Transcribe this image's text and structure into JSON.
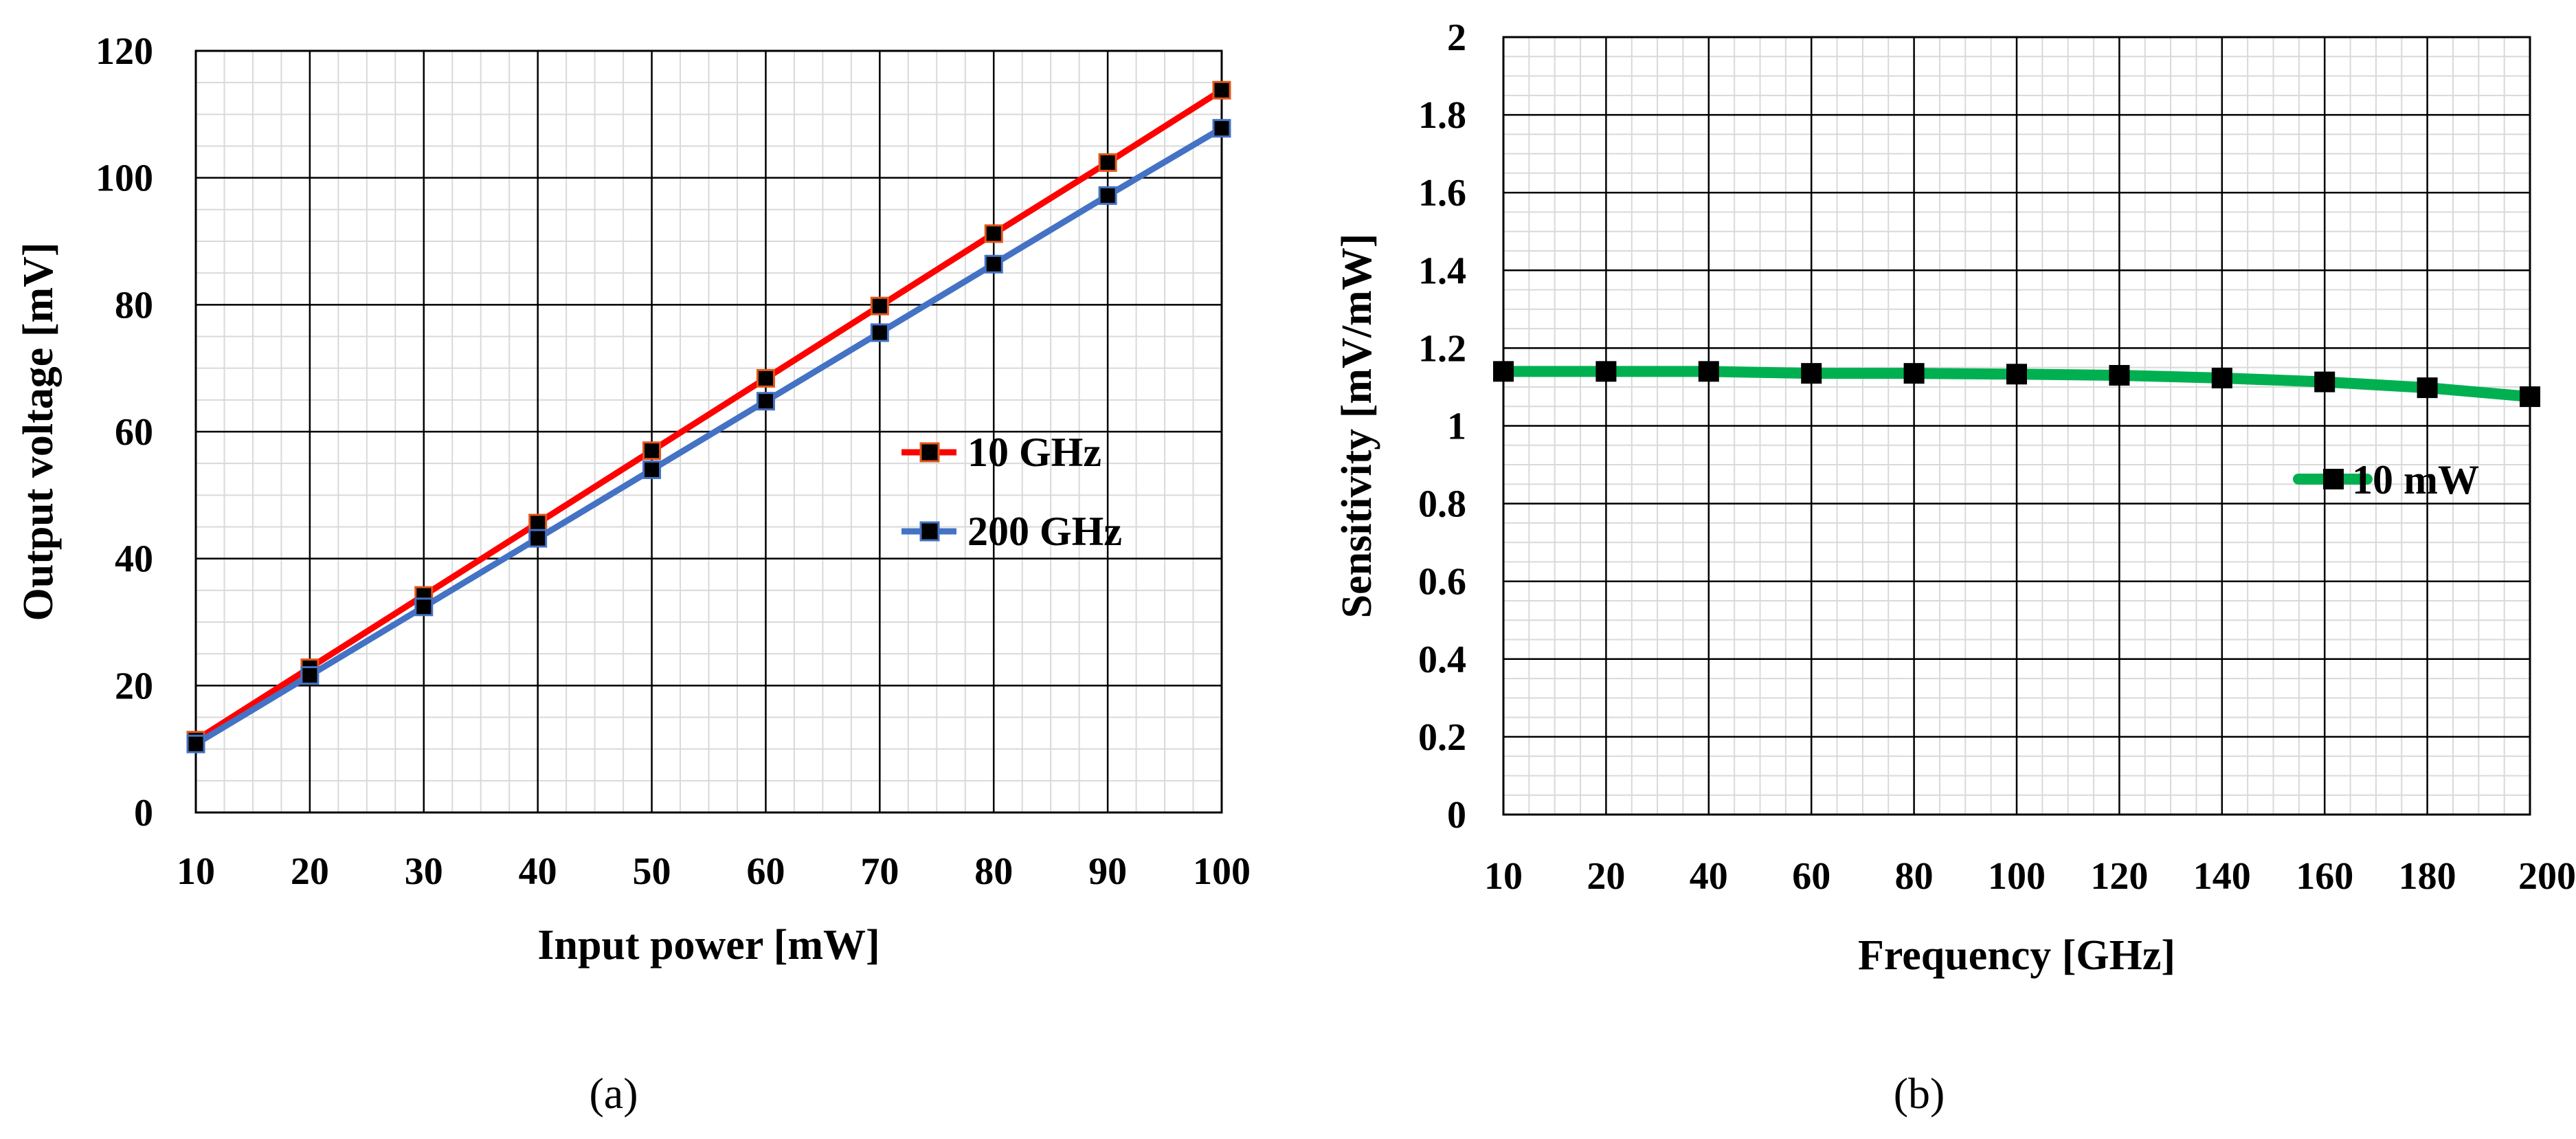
{
  "chart_data": [
    {
      "type": "line",
      "caption": "(a)",
      "xlabel": "Input power [mW]",
      "ylabel": "Output voltage [mV]",
      "xlim": [
        10,
        100
      ],
      "ylim": [
        0,
        120
      ],
      "xticks": [
        10,
        20,
        30,
        40,
        50,
        60,
        70,
        80,
        90,
        100
      ],
      "yticks": [
        0,
        20,
        40,
        60,
        80,
        100,
        120
      ],
      "grid": true,
      "legend_position": "center-right",
      "x": [
        10,
        20,
        30,
        40,
        50,
        60,
        70,
        80,
        90,
        100
      ],
      "series": [
        {
          "name": "10 GHz",
          "color": "#ff0000",
          "marker_color": "#000000",
          "marker_edge": "#e2561a",
          "values": [
            11.4,
            22.8,
            34.2,
            45.6,
            57.0,
            68.4,
            79.8,
            91.2,
            102.4,
            113.8
          ]
        },
        {
          "name": "200 GHz",
          "color": "#4472c4",
          "marker_color": "#000000",
          "marker_edge": "#4472c4",
          "values": [
            10.8,
            21.6,
            32.4,
            43.2,
            54.0,
            64.8,
            75.6,
            86.4,
            97.2,
            107.8
          ]
        }
      ]
    },
    {
      "type": "line",
      "caption": "(b)",
      "xlabel": "Frequency [GHz]",
      "ylabel": "Sensitivity [mV/mW]",
      "ylim": [
        0,
        2
      ],
      "categories": [
        "10",
        "20",
        "40",
        "60",
        "80",
        "100",
        "120",
        "140",
        "160",
        "180",
        "200"
      ],
      "yticks": [
        "0",
        "0.2",
        "0.4",
        "0.6",
        "0.8",
        "1",
        "1.2",
        "1.4",
        "1.6",
        "1.8",
        "2"
      ],
      "grid": true,
      "legend_position": "center-right",
      "series": [
        {
          "name": "10 mW",
          "color": "#00b050",
          "marker_color": "#000000",
          "marker_edge": "#000000",
          "values": [
            1.14,
            1.14,
            1.14,
            1.135,
            1.135,
            1.133,
            1.13,
            1.123,
            1.113,
            1.098,
            1.075
          ]
        }
      ]
    }
  ]
}
